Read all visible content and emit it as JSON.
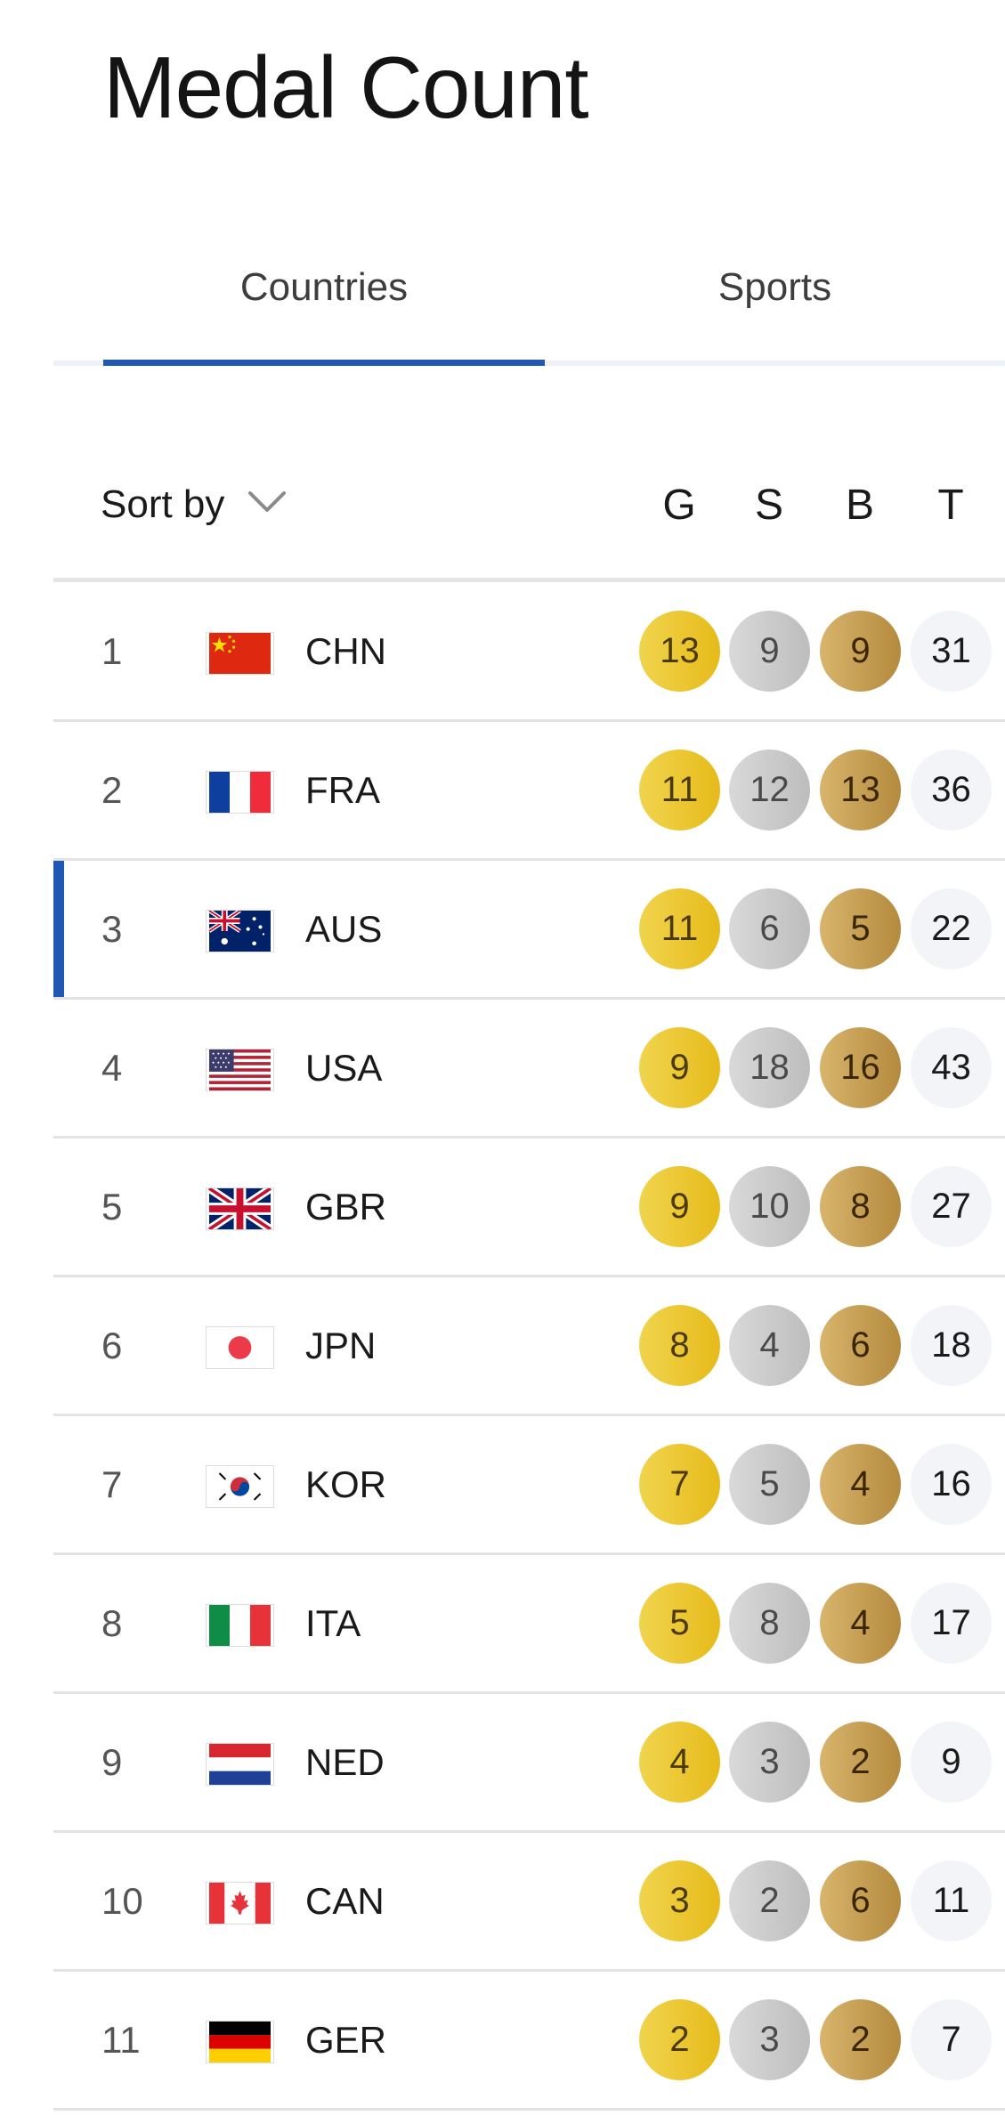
{
  "page": {
    "title": "Medal Count"
  },
  "tabs": [
    {
      "label": "Countries",
      "active": true
    },
    {
      "label": "Sports",
      "active": false
    }
  ],
  "sort": {
    "label": "Sort by",
    "icon": "chevron-down-icon"
  },
  "columns": {
    "gold": "G",
    "silver": "S",
    "bronze": "B",
    "total": "T"
  },
  "colors": {
    "accent": "#1f57b3",
    "gold": "#e6bb1a",
    "silver": "#c4c4c4",
    "bronze": "#b48a3e"
  },
  "rows": [
    {
      "rank": "1",
      "code": "CHN",
      "flag": "china-flag-icon",
      "gold": "13",
      "silver": "9",
      "bronze": "9",
      "total": "31"
    },
    {
      "rank": "2",
      "code": "FRA",
      "flag": "france-flag-icon",
      "gold": "11",
      "silver": "12",
      "bronze": "13",
      "total": "36"
    },
    {
      "rank": "3",
      "code": "AUS",
      "flag": "australia-flag-icon",
      "gold": "11",
      "silver": "6",
      "bronze": "5",
      "total": "22",
      "highlighted": true
    },
    {
      "rank": "4",
      "code": "USA",
      "flag": "usa-flag-icon",
      "gold": "9",
      "silver": "18",
      "bronze": "16",
      "total": "43"
    },
    {
      "rank": "5",
      "code": "GBR",
      "flag": "uk-flag-icon",
      "gold": "9",
      "silver": "10",
      "bronze": "8",
      "total": "27"
    },
    {
      "rank": "6",
      "code": "JPN",
      "flag": "japan-flag-icon",
      "gold": "8",
      "silver": "4",
      "bronze": "6",
      "total": "18"
    },
    {
      "rank": "7",
      "code": "KOR",
      "flag": "korea-flag-icon",
      "gold": "7",
      "silver": "5",
      "bronze": "4",
      "total": "16"
    },
    {
      "rank": "8",
      "code": "ITA",
      "flag": "italy-flag-icon",
      "gold": "5",
      "silver": "8",
      "bronze": "4",
      "total": "17"
    },
    {
      "rank": "9",
      "code": "NED",
      "flag": "netherlands-flag-icon",
      "gold": "4",
      "silver": "3",
      "bronze": "2",
      "total": "9"
    },
    {
      "rank": "10",
      "code": "CAN",
      "flag": "canada-flag-icon",
      "gold": "3",
      "silver": "2",
      "bronze": "6",
      "total": "11"
    },
    {
      "rank": "11",
      "code": "GER",
      "flag": "germany-flag-icon",
      "gold": "2",
      "silver": "3",
      "bronze": "2",
      "total": "7"
    }
  ]
}
